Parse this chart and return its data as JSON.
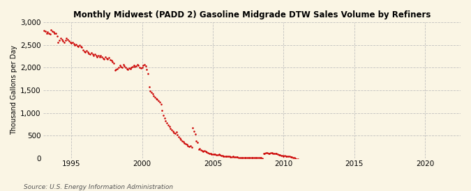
{
  "title": "Monthly Midwest (PADD 2) Gasoline Midgrade DTW Sales Volume by Refiners",
  "ylabel": "Thousand Gallons per Day",
  "source": "Source: U.S. Energy Information Administration",
  "bg_color": "#FAF5E4",
  "plot_bg_color": "#FAF5E4",
  "dot_color": "#CC0000",
  "xlim": [
    1993.0,
    2022.5
  ],
  "ylim": [
    0,
    3000
  ],
  "yticks": [
    0,
    500,
    1000,
    1500,
    2000,
    2500,
    3000
  ],
  "xticks": [
    1995,
    2000,
    2005,
    2010,
    2015,
    2020
  ],
  "data": [
    [
      1993.08,
      2820
    ],
    [
      1993.17,
      2800
    ],
    [
      1993.25,
      2750
    ],
    [
      1993.33,
      2780
    ],
    [
      1993.42,
      2760
    ],
    [
      1993.5,
      2740
    ],
    [
      1993.58,
      2830
    ],
    [
      1993.67,
      2800
    ],
    [
      1993.75,
      2780
    ],
    [
      1993.83,
      2750
    ],
    [
      1993.92,
      2760
    ],
    [
      1994.0,
      2700
    ],
    [
      1994.08,
      2560
    ],
    [
      1994.17,
      2600
    ],
    [
      1994.25,
      2650
    ],
    [
      1994.33,
      2620
    ],
    [
      1994.42,
      2580
    ],
    [
      1994.5,
      2560
    ],
    [
      1994.58,
      2600
    ],
    [
      1994.67,
      2640
    ],
    [
      1994.75,
      2610
    ],
    [
      1994.83,
      2580
    ],
    [
      1994.92,
      2560
    ],
    [
      1995.0,
      2540
    ],
    [
      1995.08,
      2560
    ],
    [
      1995.17,
      2530
    ],
    [
      1995.25,
      2500
    ],
    [
      1995.33,
      2510
    ],
    [
      1995.42,
      2480
    ],
    [
      1995.5,
      2460
    ],
    [
      1995.58,
      2500
    ],
    [
      1995.67,
      2470
    ],
    [
      1995.75,
      2450
    ],
    [
      1995.83,
      2380
    ],
    [
      1995.92,
      2360
    ],
    [
      1996.0,
      2340
    ],
    [
      1996.08,
      2370
    ],
    [
      1996.17,
      2340
    ],
    [
      1996.25,
      2310
    ],
    [
      1996.33,
      2290
    ],
    [
      1996.42,
      2330
    ],
    [
      1996.5,
      2300
    ],
    [
      1996.58,
      2270
    ],
    [
      1996.67,
      2300
    ],
    [
      1996.75,
      2260
    ],
    [
      1996.83,
      2240
    ],
    [
      1996.92,
      2260
    ],
    [
      1997.0,
      2240
    ],
    [
      1997.08,
      2260
    ],
    [
      1997.17,
      2240
    ],
    [
      1997.25,
      2210
    ],
    [
      1997.33,
      2190
    ],
    [
      1997.42,
      2230
    ],
    [
      1997.5,
      2200
    ],
    [
      1997.58,
      2190
    ],
    [
      1997.67,
      2220
    ],
    [
      1997.75,
      2180
    ],
    [
      1997.83,
      2150
    ],
    [
      1997.92,
      2130
    ],
    [
      1998.0,
      2100
    ],
    [
      1998.08,
      1940
    ],
    [
      1998.17,
      1960
    ],
    [
      1998.25,
      1980
    ],
    [
      1998.33,
      2000
    ],
    [
      1998.42,
      2050
    ],
    [
      1998.5,
      2020
    ],
    [
      1998.58,
      2010
    ],
    [
      1998.67,
      2060
    ],
    [
      1998.75,
      2040
    ],
    [
      1998.83,
      2000
    ],
    [
      1998.92,
      1980
    ],
    [
      1999.0,
      1960
    ],
    [
      1999.08,
      1990
    ],
    [
      1999.17,
      1970
    ],
    [
      1999.25,
      2000
    ],
    [
      1999.33,
      2020
    ],
    [
      1999.42,
      2050
    ],
    [
      1999.5,
      2020
    ],
    [
      1999.58,
      2040
    ],
    [
      1999.67,
      2070
    ],
    [
      1999.75,
      2050
    ],
    [
      1999.83,
      2010
    ],
    [
      1999.92,
      1990
    ],
    [
      2000.0,
      2010
    ],
    [
      2000.08,
      2050
    ],
    [
      2000.17,
      2060
    ],
    [
      2000.25,
      2040
    ],
    [
      2000.33,
      1960
    ],
    [
      2000.42,
      1870
    ],
    [
      2000.5,
      1580
    ],
    [
      2000.58,
      1490
    ],
    [
      2000.67,
      1450
    ],
    [
      2000.75,
      1420
    ],
    [
      2000.83,
      1380
    ],
    [
      2000.92,
      1350
    ],
    [
      2001.0,
      1320
    ],
    [
      2001.08,
      1300
    ],
    [
      2001.17,
      1270
    ],
    [
      2001.25,
      1240
    ],
    [
      2001.33,
      1200
    ],
    [
      2001.42,
      1050
    ],
    [
      2001.5,
      950
    ],
    [
      2001.58,
      880
    ],
    [
      2001.67,
      820
    ],
    [
      2001.75,
      780
    ],
    [
      2001.83,
      740
    ],
    [
      2001.92,
      700
    ],
    [
      2002.0,
      660
    ],
    [
      2002.08,
      630
    ],
    [
      2002.17,
      600
    ],
    [
      2002.25,
      570
    ],
    [
      2002.33,
      550
    ],
    [
      2002.42,
      580
    ],
    [
      2002.5,
      520
    ],
    [
      2002.58,
      480
    ],
    [
      2002.67,
      440
    ],
    [
      2002.75,
      410
    ],
    [
      2002.83,
      380
    ],
    [
      2002.92,
      360
    ],
    [
      2003.0,
      340
    ],
    [
      2003.08,
      320
    ],
    [
      2003.17,
      300
    ],
    [
      2003.25,
      280
    ],
    [
      2003.33,
      260
    ],
    [
      2003.42,
      280
    ],
    [
      2003.5,
      250
    ],
    [
      2003.58,
      680
    ],
    [
      2003.67,
      600
    ],
    [
      2003.75,
      540
    ],
    [
      2003.83,
      380
    ],
    [
      2003.92,
      350
    ],
    [
      2004.0,
      200
    ],
    [
      2004.08,
      210
    ],
    [
      2004.17,
      190
    ],
    [
      2004.25,
      170
    ],
    [
      2004.33,
      155
    ],
    [
      2004.42,
      170
    ],
    [
      2004.5,
      150
    ],
    [
      2004.58,
      135
    ],
    [
      2004.67,
      120
    ],
    [
      2004.75,
      110
    ],
    [
      2004.83,
      100
    ],
    [
      2004.92,
      90
    ],
    [
      2005.0,
      85
    ],
    [
      2005.08,
      95
    ],
    [
      2005.17,
      85
    ],
    [
      2005.25,
      80
    ],
    [
      2005.33,
      75
    ],
    [
      2005.42,
      85
    ],
    [
      2005.5,
      70
    ],
    [
      2005.58,
      60
    ],
    [
      2005.67,
      55
    ],
    [
      2005.75,
      50
    ],
    [
      2005.83,
      45
    ],
    [
      2005.92,
      40
    ],
    [
      2006.0,
      38
    ],
    [
      2006.08,
      42
    ],
    [
      2006.17,
      38
    ],
    [
      2006.25,
      36
    ],
    [
      2006.33,
      34
    ],
    [
      2006.42,
      38
    ],
    [
      2006.5,
      32
    ],
    [
      2006.58,
      30
    ],
    [
      2006.67,
      28
    ],
    [
      2006.75,
      25
    ],
    [
      2006.83,
      22
    ],
    [
      2006.92,
      20
    ],
    [
      2007.0,
      18
    ],
    [
      2007.08,
      20
    ],
    [
      2007.17,
      18
    ],
    [
      2007.25,
      16
    ],
    [
      2007.33,
      15
    ],
    [
      2007.42,
      17
    ],
    [
      2007.5,
      14
    ],
    [
      2007.58,
      13
    ],
    [
      2007.67,
      12
    ],
    [
      2007.75,
      11
    ],
    [
      2007.83,
      10
    ],
    [
      2007.92,
      9
    ],
    [
      2008.0,
      9
    ],
    [
      2008.08,
      10
    ],
    [
      2008.17,
      9
    ],
    [
      2008.25,
      8
    ],
    [
      2008.33,
      8
    ],
    [
      2008.42,
      9
    ],
    [
      2008.5,
      7
    ],
    [
      2008.58,
      100
    ],
    [
      2008.67,
      110
    ],
    [
      2008.75,
      120
    ],
    [
      2008.83,
      115
    ],
    [
      2008.92,
      105
    ],
    [
      2009.0,
      110
    ],
    [
      2009.08,
      120
    ],
    [
      2009.17,
      115
    ],
    [
      2009.25,
      110
    ],
    [
      2009.33,
      105
    ],
    [
      2009.42,
      112
    ],
    [
      2009.5,
      100
    ],
    [
      2009.58,
      90
    ],
    [
      2009.67,
      80
    ],
    [
      2009.75,
      70
    ],
    [
      2009.83,
      60
    ],
    [
      2009.92,
      55
    ],
    [
      2010.0,
      50
    ],
    [
      2010.08,
      55
    ],
    [
      2010.17,
      50
    ],
    [
      2010.25,
      45
    ],
    [
      2010.33,
      40
    ],
    [
      2010.42,
      45
    ],
    [
      2010.5,
      35
    ],
    [
      2010.58,
      25
    ],
    [
      2010.67,
      15
    ],
    [
      2010.75,
      8
    ],
    [
      2010.83,
      5
    ],
    [
      2010.92,
      -15
    ],
    [
      2011.0,
      -18
    ]
  ]
}
